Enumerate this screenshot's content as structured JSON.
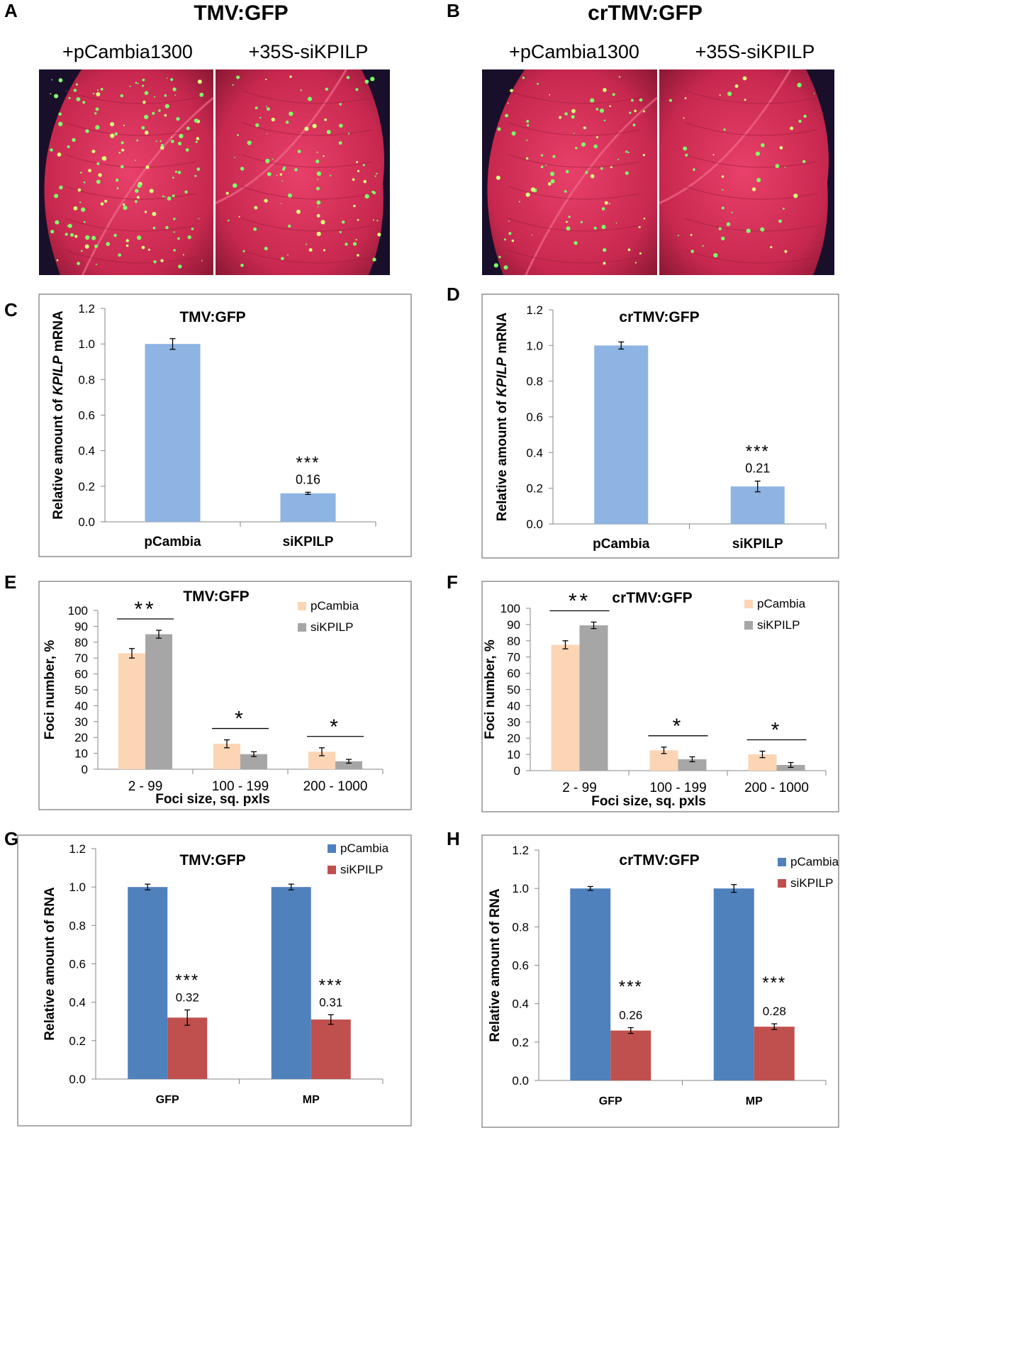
{
  "panels": {
    "A": {
      "letter": "A",
      "title": "TMV:GFP",
      "labels": [
        "+pCambia1300",
        "+35S-siKPILP"
      ],
      "images": [
        "leaf-pcambia-tmv",
        "leaf-sikpilp-tmv"
      ]
    },
    "B": {
      "letter": "B",
      "title": "crTMV:GFP",
      "labels": [
        "+pCambia1300",
        "+35S-siKPILP"
      ],
      "images": [
        "leaf-pcambia-crtmv",
        "leaf-sikpilp-crtmv"
      ]
    },
    "C": {
      "letter": "C"
    },
    "D": {
      "letter": "D"
    },
    "E": {
      "letter": "E"
    },
    "F": {
      "letter": "F"
    },
    "G": {
      "letter": "G"
    },
    "H": {
      "letter": "H"
    }
  },
  "colors": {
    "light_blue": "#8DB4E2",
    "peach": "#FCD5B5",
    "gray": "#A6A6A6",
    "blue": "#4F81BD",
    "red": "#C0504D"
  },
  "chart_data": [
    {
      "id": "C",
      "type": "bar",
      "title": "TMV:GFP",
      "ylabel": [
        "Relative amount of ",
        "KPILP",
        " mRNA"
      ],
      "categories": [
        "pCambia",
        "siKPILP"
      ],
      "series": [
        {
          "name": "",
          "values": [
            1.0,
            0.16
          ],
          "errors": [
            0.03,
            0.006
          ],
          "color": "light_blue"
        }
      ],
      "ylim": [
        0,
        1.2
      ],
      "ystep": 0.2,
      "ydecimals": 1,
      "data_labels": {
        "1": "0.16"
      },
      "stars": {
        "1": "***"
      }
    },
    {
      "id": "D",
      "type": "bar",
      "title": "crTMV:GFP",
      "ylabel": [
        "Relative amount of ",
        "KPILP",
        " mRNA"
      ],
      "categories": [
        "pCambia",
        "siKPILP"
      ],
      "series": [
        {
          "name": "",
          "values": [
            1.0,
            0.21
          ],
          "errors": [
            0.02,
            0.03
          ],
          "color": "light_blue"
        }
      ],
      "ylim": [
        0,
        1.2
      ],
      "ystep": 0.2,
      "ydecimals": 1,
      "data_labels": {
        "1": "0.21"
      },
      "stars": {
        "1": "***"
      }
    },
    {
      "id": "E",
      "type": "bar",
      "title": "TMV:GFP",
      "ylabel": [
        "Foci number, %"
      ],
      "xlabel": "Foci size, sq. pxls",
      "categories": [
        "2 - 99",
        "100 - 199",
        "200 - 1000"
      ],
      "series": [
        {
          "name": "pCambia",
          "values": [
            73,
            16,
            11
          ],
          "errors": [
            3,
            2.5,
            2.5
          ],
          "color": "peach"
        },
        {
          "name": "siKPILP",
          "values": [
            85,
            9.5,
            5
          ],
          "errors": [
            2.5,
            1.5,
            1.2
          ],
          "color": "gray"
        }
      ],
      "ylim": [
        0,
        100
      ],
      "ystep": 10,
      "ydecimals": 0,
      "sig": [
        "**",
        "*",
        "*"
      ],
      "legend": "top-right"
    },
    {
      "id": "F",
      "type": "bar",
      "title": "crTMV:GFP",
      "ylabel": [
        "Foci number, %"
      ],
      "xlabel": "Foci size, sq. pxls",
      "categories": [
        "2 - 99",
        "100 - 199",
        "200 - 1000"
      ],
      "series": [
        {
          "name": "pCambia",
          "values": [
            77.5,
            12.5,
            10
          ],
          "errors": [
            2.5,
            2,
            2
          ],
          "color": "peach"
        },
        {
          "name": "siKPILP",
          "values": [
            89.5,
            7,
            3.5
          ],
          "errors": [
            2,
            1.5,
            1.5
          ],
          "color": "gray"
        }
      ],
      "ylim": [
        0,
        100
      ],
      "ystep": 10,
      "ydecimals": 0,
      "sig": [
        "**",
        "*",
        "*"
      ],
      "legend": "top-right"
    },
    {
      "id": "G",
      "type": "bar",
      "title": "TMV:GFP",
      "ylabel": [
        "Relative amount of RNA"
      ],
      "categories": [
        "GFP",
        "MP"
      ],
      "series": [
        {
          "name": "pCambia",
          "values": [
            1.0,
            1.0
          ],
          "errors": [
            0.015,
            0.015
          ],
          "color": "blue"
        },
        {
          "name": "siKPILP",
          "values": [
            0.32,
            0.31
          ],
          "errors": [
            0.04,
            0.025
          ],
          "color": "red"
        }
      ],
      "ylim": [
        0,
        1.2
      ],
      "ystep": 0.2,
      "ydecimals": 1,
      "data_labels2": [
        "0.32",
        "0.31"
      ],
      "stars2": [
        "***",
        "***"
      ],
      "legend": "top-right"
    },
    {
      "id": "H",
      "type": "bar",
      "title": "crTMV:GFP",
      "ylabel": [
        "Relative amount of RNA"
      ],
      "categories": [
        "GFP",
        "MP"
      ],
      "series": [
        {
          "name": "pCambia",
          "values": [
            1.0,
            1.0
          ],
          "errors": [
            0.01,
            0.02
          ],
          "color": "blue"
        },
        {
          "name": "siKPILP",
          "values": [
            0.26,
            0.28
          ],
          "errors": [
            0.015,
            0.015
          ],
          "color": "red"
        }
      ],
      "ylim": [
        0,
        1.2
      ],
      "ystep": 0.2,
      "ydecimals": 1,
      "data_labels2": [
        "0.26",
        "0.28"
      ],
      "stars2": [
        "***",
        "***"
      ],
      "legend": "top-right"
    }
  ]
}
